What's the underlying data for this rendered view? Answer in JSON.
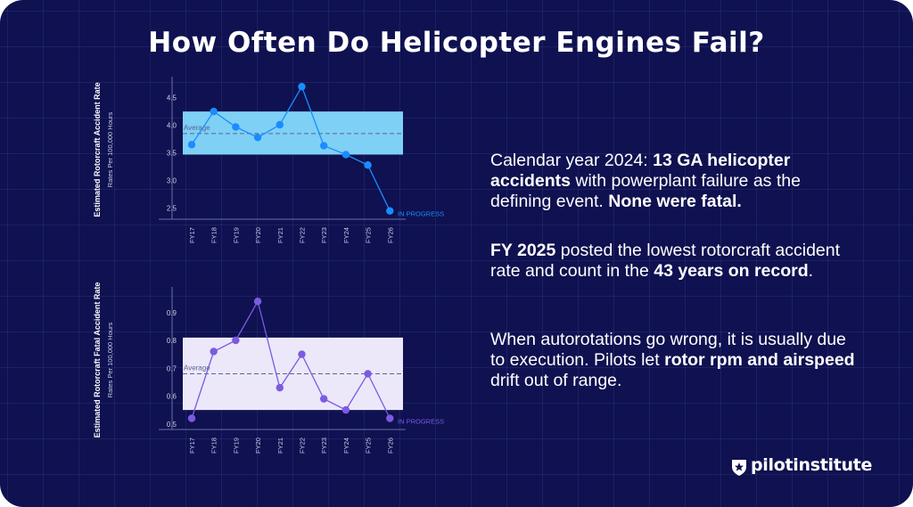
{
  "title": "How Often Do Helicopter Engines Fail?",
  "chart_data": [
    {
      "type": "line",
      "ylabel": "Estimated Rotorcraft Accident Rate",
      "ysublabel": "Rates Per 100,000 Hours",
      "categories": [
        "FY17",
        "FY18",
        "FY19",
        "FY20",
        "FY21",
        "FY22",
        "FY23",
        "FY24",
        "FY25",
        "FY26"
      ],
      "values": [
        3.65,
        4.25,
        3.97,
        3.78,
        4.01,
        4.7,
        3.63,
        3.47,
        3.28,
        2.45
      ],
      "yticks": [
        2.5,
        3.0,
        3.5,
        4.0,
        4.5
      ],
      "ylim": [
        2.3,
        4.72
      ],
      "band": [
        3.47,
        4.25
      ],
      "average": 3.85,
      "average_label": "Average",
      "annotation": "IN PROGRESS",
      "line_color": "#1a8cff",
      "band_color": "#7fd0f5"
    },
    {
      "type": "line",
      "ylabel": "Estimated Rotorcraft Fatal Accident Rate",
      "ysublabel": "Rates Per 100,000 Hours",
      "categories": [
        "FY17",
        "FY18",
        "FY19",
        "FY20",
        "FY21",
        "FY22",
        "FY23",
        "FY24",
        "FY25",
        "FY26"
      ],
      "values": [
        0.52,
        0.76,
        0.8,
        0.94,
        0.63,
        0.75,
        0.59,
        0.55,
        0.68,
        0.52
      ],
      "yticks": [
        0.5,
        0.6,
        0.7,
        0.8,
        0.9
      ],
      "ylim": [
        0.48,
        0.96
      ],
      "band": [
        0.55,
        0.81
      ],
      "average": 0.68,
      "average_label": "Average",
      "annotation": "IN PROGRESS",
      "line_color": "#7b5be0",
      "band_color": "#ece8fa"
    }
  ],
  "text": {
    "p1": [
      "Calendar year 2024: ",
      "13 GA helicopter accidents",
      " with powerplant failure as the defining event. ",
      "None were fatal."
    ],
    "p2": [
      "FY 2025",
      " posted the lowest rotorcraft accident rate and count in the ",
      "43 years on record",
      "."
    ],
    "p3": [
      "When autorotations go wrong, it is usually due to execution. Pilots let ",
      "rotor rpm and airspeed",
      " drift out of range."
    ]
  },
  "logo": {
    "text": "pilotinstitute",
    "icon": "star-shield-icon"
  }
}
